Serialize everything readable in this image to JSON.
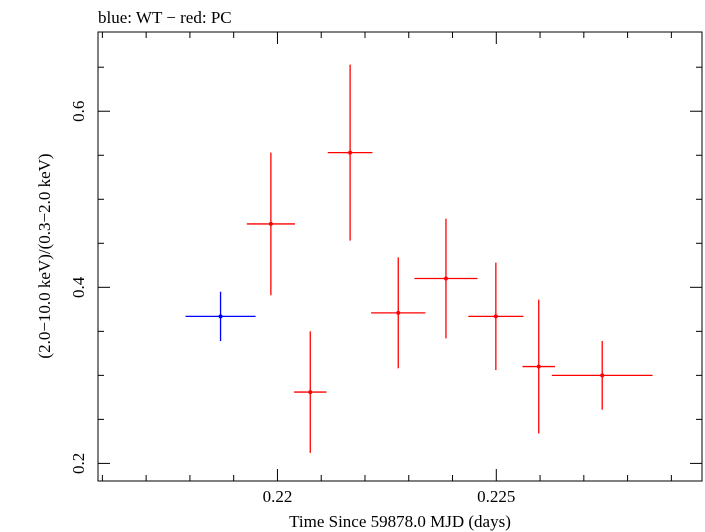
{
  "chart_data": {
    "type": "scatter",
    "title": "blue: WT − red: PC",
    "xlabel": "Time Since 59878.0 MJD (days)",
    "ylabel": "(2.0−10.0 keV)/(0.3−2.0 keV)",
    "xlim": [
      0.2159,
      0.2297
    ],
    "ylim": [
      0.18,
      0.69
    ],
    "xticks": [
      0.22,
      0.225
    ],
    "xtick_labels": [
      "0.22",
      "0.225"
    ],
    "yticks": [
      0.2,
      0.4,
      0.6
    ],
    "ytick_labels": [
      "0.2",
      "0.4",
      "0.6"
    ],
    "x_minor_step": 0.001,
    "y_minor_step": 0.05,
    "grid": false,
    "series": [
      {
        "color": "#0000ff",
        "points": [
          {
            "x": 0.2187,
            "xerr": 0.0008,
            "y": 0.367,
            "yerr_low": 0.028,
            "yerr_high": 0.028
          }
        ]
      },
      {
        "color": "#ff0000",
        "points": [
          {
            "x": 0.21985,
            "xerr": 0.00055,
            "y": 0.472,
            "yerr_low": 0.081,
            "yerr_high": 0.081
          },
          {
            "x": 0.22075,
            "xerr": 0.00037,
            "y": 0.281,
            "yerr_low": 0.069,
            "yerr_high": 0.069
          },
          {
            "x": 0.22166,
            "xerr": 0.00051,
            "y": 0.553,
            "yerr_low": 0.1,
            "yerr_high": 0.1
          },
          {
            "x": 0.22276,
            "xerr": 0.00062,
            "y": 0.371,
            "yerr_low": 0.063,
            "yerr_high": 0.063
          },
          {
            "x": 0.22385,
            "xerr": 0.00072,
            "y": 0.41,
            "yerr_low": 0.068,
            "yerr_high": 0.068
          },
          {
            "x": 0.22499,
            "xerr": 0.00063,
            "y": 0.367,
            "yerr_low": 0.061,
            "yerr_high": 0.061
          },
          {
            "x": 0.22597,
            "xerr": 0.00037,
            "y": 0.31,
            "yerr_low": 0.076,
            "yerr_high": 0.076
          },
          {
            "x": 0.22742,
            "xerr": 0.00115,
            "y": 0.3,
            "yerr_low": 0.039,
            "yerr_high": 0.039
          }
        ]
      }
    ]
  }
}
